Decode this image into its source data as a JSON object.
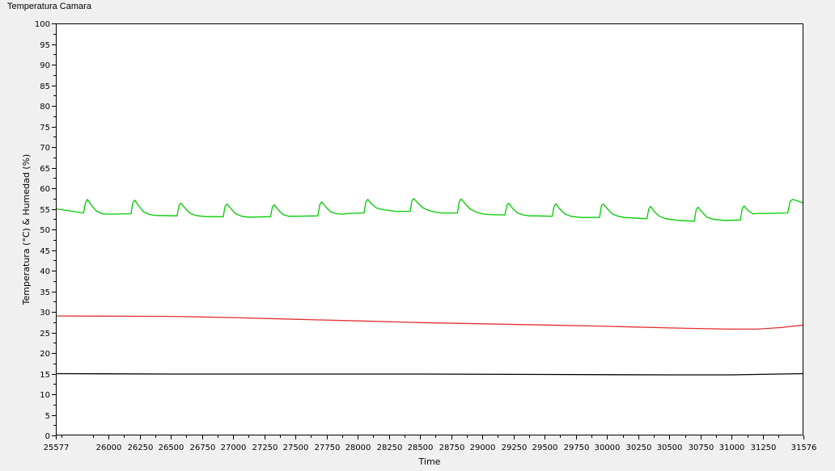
{
  "chart_data": {
    "type": "line",
    "title": "Temperatura Camara",
    "xlabel": "Time",
    "ylabel": "Temperatura (°C) & Humedad (%)",
    "xlim": [
      25577,
      31576
    ],
    "ylim": [
      0,
      100
    ],
    "x_ticks": [
      25577,
      26000,
      26250,
      26500,
      26750,
      27000,
      27250,
      27500,
      27750,
      28000,
      28250,
      28500,
      28750,
      29000,
      29250,
      29500,
      29750,
      30000,
      30250,
      30500,
      30750,
      31000,
      31250,
      31576
    ],
    "y_ticks": [
      0,
      5,
      10,
      15,
      20,
      25,
      30,
      35,
      40,
      45,
      50,
      55,
      60,
      65,
      70,
      75,
      80,
      85,
      90,
      95,
      100
    ],
    "grid": false,
    "series": [
      {
        "color": "#00cc00",
        "x": [
          25577,
          25800,
          25815,
          25830,
          25860,
          25900,
          25950,
          26000,
          26180,
          26195,
          26210,
          26240,
          26280,
          26330,
          26380,
          26550,
          26565,
          26580,
          26610,
          26650,
          26700,
          26750,
          26800,
          26920,
          26935,
          26950,
          26980,
          27020,
          27070,
          27120,
          27170,
          27300,
          27315,
          27330,
          27360,
          27400,
          27450,
          27500,
          27680,
          27695,
          27710,
          27740,
          27780,
          27830,
          27880,
          27930,
          28050,
          28065,
          28080,
          28110,
          28150,
          28200,
          28250,
          28300,
          28420,
          28435,
          28450,
          28480,
          28520,
          28570,
          28620,
          28670,
          28800,
          28815,
          28830,
          28860,
          28900,
          28950,
          29000,
          29050,
          29180,
          29195,
          29210,
          29240,
          29280,
          29330,
          29380,
          29430,
          29560,
          29575,
          29590,
          29620,
          29660,
          29710,
          29760,
          29800,
          29940,
          29955,
          29970,
          30000,
          30040,
          30090,
          30140,
          30190,
          30320,
          30335,
          30350,
          30380,
          30420,
          30470,
          30520,
          30570,
          30700,
          30715,
          30730,
          30760,
          30800,
          30850,
          30900,
          30950,
          31070,
          31085,
          31100,
          31130,
          31170,
          31220,
          31270,
          31300,
          31450,
          31470,
          31490,
          31530,
          31576
        ],
        "values": [
          55.0,
          54.0,
          56.5,
          57.3,
          56.0,
          54.5,
          53.8,
          53.7,
          53.8,
          56.5,
          57.1,
          55.8,
          54.3,
          53.6,
          53.4,
          53.3,
          55.8,
          56.4,
          55.3,
          54.0,
          53.4,
          53.2,
          53.1,
          53.1,
          55.6,
          56.2,
          55.1,
          53.8,
          53.2,
          53.0,
          53.0,
          53.1,
          55.5,
          56.0,
          54.8,
          53.6,
          53.2,
          53.2,
          53.3,
          56.0,
          56.7,
          55.6,
          54.3,
          53.8,
          53.7,
          53.9,
          54.0,
          56.7,
          57.3,
          56.2,
          55.2,
          54.8,
          54.6,
          54.4,
          54.4,
          57.0,
          57.5,
          56.5,
          55.3,
          54.6,
          54.2,
          54.0,
          54.0,
          56.8,
          57.4,
          56.3,
          55.0,
          54.2,
          53.8,
          53.6,
          53.5,
          55.8,
          56.4,
          55.2,
          54.0,
          53.5,
          53.3,
          53.3,
          53.2,
          55.6,
          56.2,
          55.0,
          53.8,
          53.2,
          53.0,
          52.9,
          52.9,
          55.7,
          56.2,
          55.1,
          53.8,
          53.2,
          52.9,
          52.8,
          52.6,
          55.0,
          55.6,
          54.3,
          53.2,
          52.6,
          52.4,
          52.2,
          52.0,
          54.8,
          55.4,
          54.3,
          53.0,
          52.5,
          52.3,
          52.2,
          52.3,
          55.1,
          55.7,
          54.6,
          53.8,
          53.9,
          53.9,
          53.9,
          54.0,
          56.9,
          57.3,
          56.9,
          56.4
        ]
      },
      {
        "color": "#e03030",
        "x": [
          25577,
          26500,
          27000,
          27500,
          28000,
          28500,
          29000,
          29500,
          30000,
          30500,
          30800,
          31000,
          31200,
          31400,
          31576
        ],
        "values": [
          29.0,
          28.9,
          28.6,
          28.2,
          27.8,
          27.4,
          27.1,
          26.8,
          26.5,
          26.1,
          25.9,
          25.8,
          25.8,
          26.2,
          26.8
        ]
      },
      {
        "color": "#000000",
        "x": [
          25577,
          26500,
          27500,
          28500,
          29500,
          30500,
          31000,
          31576
        ],
        "values": [
          15.0,
          14.9,
          14.9,
          14.9,
          14.8,
          14.7,
          14.7,
          15.0
        ]
      }
    ]
  }
}
